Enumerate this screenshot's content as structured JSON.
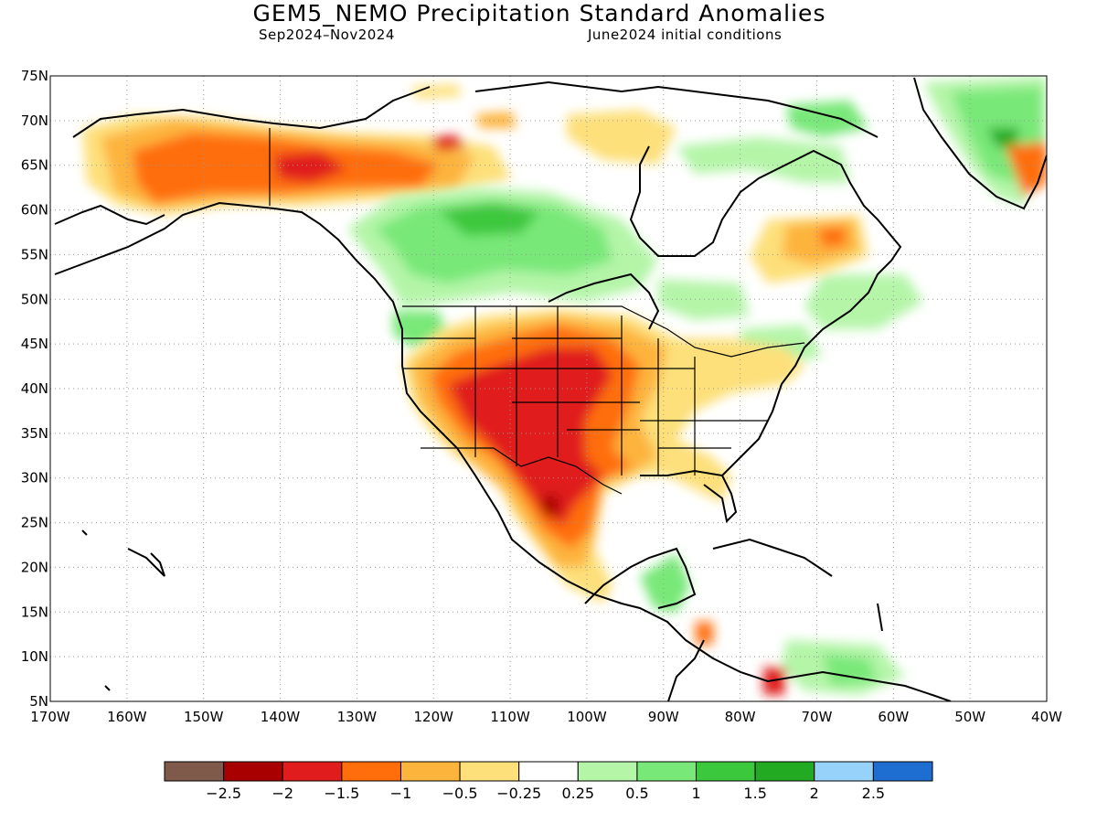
{
  "header": {
    "title": "GEM5_NEMO Precipitation Standard Anomalies",
    "period": "Sep2024–Nov2024",
    "init": "June2024 initial conditions"
  },
  "map": {
    "lon_range": [
      -170,
      -40
    ],
    "lat_range": [
      5,
      75
    ],
    "lat_ticks": [
      "75N",
      "70N",
      "65N",
      "60N",
      "55N",
      "50N",
      "45N",
      "40N",
      "35N",
      "30N",
      "25N",
      "20N",
      "15N",
      "10N",
      "5N"
    ],
    "lon_ticks": [
      "170W",
      "160W",
      "150W",
      "140W",
      "130W",
      "120W",
      "110W",
      "100W",
      "90W",
      "80W",
      "70W",
      "60W",
      "50W",
      "40W"
    ],
    "gridlines": true,
    "regions": [
      {
        "name": "alaska-yukon-dry",
        "level": "-1",
        "lon": -140,
        "lat": 65
      },
      {
        "name": "southwest-us-dry",
        "level": "-2",
        "lon": -108,
        "lat": 37
      },
      {
        "name": "texas-mexico-dry",
        "level": "-2",
        "lon": -102,
        "lat": 27
      },
      {
        "name": "canada-prairies-wet",
        "level": "1",
        "lon": -112,
        "lat": 56
      },
      {
        "name": "greenland-wet",
        "level": "1",
        "lon": -45,
        "lat": 68
      },
      {
        "name": "central-america-wet",
        "level": "0.5",
        "lon": -88,
        "lat": 16
      },
      {
        "name": "labrador-dry",
        "level": "-0.5",
        "lon": -63,
        "lat": 55
      }
    ]
  },
  "colorbar": {
    "colors": [
      "#7f5a4b",
      "#a80000",
      "#e01c1c",
      "#ff6e0a",
      "#fdb43c",
      "#fde07a",
      "#ffffff",
      "#b4f5a8",
      "#78e878",
      "#3cc83c",
      "#22aa22",
      "#96d2fa",
      "#1e6ed2"
    ],
    "labels": [
      "−2.5",
      "−2",
      "−1.5",
      "−1",
      "−0.5",
      "−0.25",
      "0.25",
      "0.5",
      "1",
      "1.5",
      "2",
      "2.5"
    ]
  }
}
